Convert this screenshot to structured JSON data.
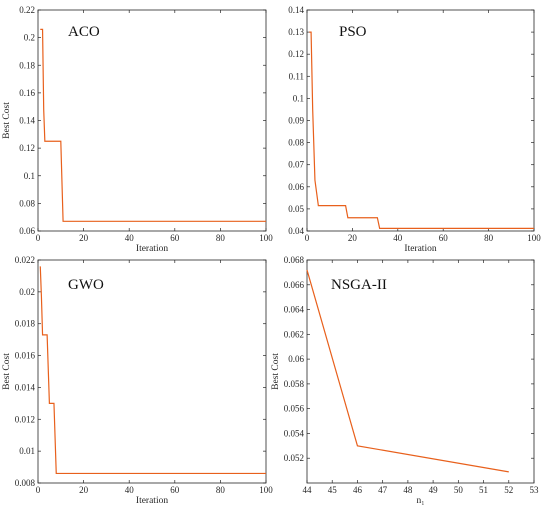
{
  "colors": {
    "line": "#E8601C",
    "axis": "#262626",
    "background": "#FFFFFF"
  },
  "chart_data": [
    {
      "type": "line",
      "title": "ACO",
      "xlabel": "Iteration",
      "ylabel": "Best Cost",
      "xlim": [
        0,
        100
      ],
      "ylim": [
        0.06,
        0.22
      ],
      "xticks": [
        "0",
        "20",
        "40",
        "60",
        "80",
        "100"
      ],
      "yticks": [
        "0.06",
        "0.08",
        "0.1",
        "0.12",
        "0.14",
        "0.16",
        "0.18",
        "0.2",
        "0.22"
      ],
      "grid": false,
      "x": [
        1,
        2,
        2.5,
        3,
        9,
        10,
        11,
        100
      ],
      "y": [
        0.206,
        0.206,
        0.148,
        0.125,
        0.125,
        0.125,
        0.067,
        0.067
      ]
    },
    {
      "type": "line",
      "title": "PSO",
      "xlabel": "Iteration",
      "ylabel": "",
      "xlim": [
        0,
        100
      ],
      "ylim": [
        0.04,
        0.14
      ],
      "xticks": [
        "0",
        "20",
        "40",
        "60",
        "80",
        "100"
      ],
      "yticks": [
        "0.04",
        "0.05",
        "0.06",
        "0.07",
        "0.08",
        "0.09",
        "0.1",
        "0.11",
        "0.12",
        "0.13",
        "0.14"
      ],
      "grid": false,
      "x": [
        1,
        1.8,
        2.5,
        3.5,
        5,
        17,
        18,
        31,
        32,
        100
      ],
      "y": [
        0.13,
        0.13,
        0.095,
        0.063,
        0.0515,
        0.0515,
        0.046,
        0.046,
        0.0412,
        0.0412
      ]
    },
    {
      "type": "line",
      "title": "GWO",
      "xlabel": "Iteration",
      "ylabel": "Best Cost",
      "xlim": [
        0,
        100
      ],
      "ylim": [
        0.008,
        0.022
      ],
      "xticks": [
        "0",
        "20",
        "40",
        "60",
        "80",
        "100"
      ],
      "yticks": [
        "0.008",
        "0.01",
        "0.012",
        "0.014",
        "0.016",
        "0.018",
        "0.02",
        "0.022"
      ],
      "grid": false,
      "x": [
        1,
        1.5,
        2,
        4,
        5,
        7,
        8,
        100
      ],
      "y": [
        0.0216,
        0.0197,
        0.0173,
        0.0173,
        0.013,
        0.013,
        0.0086,
        0.0086
      ]
    },
    {
      "type": "line",
      "title": "NSGA-II",
      "xlabel": "n₁",
      "ylabel": "Best Cost",
      "xlim": [
        44,
        53
      ],
      "ylim": [
        0.05,
        0.068
      ],
      "xticks": [
        "44",
        "45",
        "46",
        "47",
        "48",
        "49",
        "50",
        "51",
        "52",
        "53"
      ],
      "yticks": [
        "0.052",
        "0.054",
        "0.056",
        "0.058",
        "0.06",
        "0.062",
        "0.064",
        "0.066",
        "0.068"
      ],
      "grid": false,
      "x": [
        44,
        46,
        52
      ],
      "y": [
        0.0672,
        0.053,
        0.0509
      ]
    }
  ]
}
